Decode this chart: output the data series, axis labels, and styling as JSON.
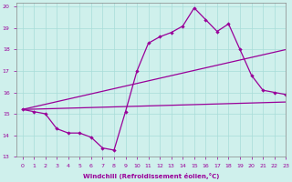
{
  "xlabel": "Windchill (Refroidissement éolien,°C)",
  "background_color": "#cff0ec",
  "line_color": "#990099",
  "xlim": [
    -0.5,
    23
  ],
  "ylim": [
    13,
    20.2
  ],
  "yticks": [
    13,
    14,
    15,
    16,
    17,
    18,
    19,
    20
  ],
  "xticks": [
    0,
    1,
    2,
    3,
    4,
    5,
    6,
    7,
    8,
    9,
    10,
    11,
    12,
    13,
    14,
    15,
    16,
    17,
    18,
    19,
    20,
    21,
    22,
    23
  ],
  "series1_x": [
    0,
    1,
    2,
    3,
    4,
    5,
    6,
    7,
    8,
    9,
    10,
    11,
    12,
    13,
    14,
    15,
    16,
    17,
    18,
    19,
    20,
    21,
    22,
    23
  ],
  "series1_y": [
    15.2,
    15.1,
    15.0,
    14.3,
    14.1,
    14.1,
    13.9,
    13.4,
    13.3,
    15.1,
    17.0,
    18.3,
    18.6,
    18.8,
    19.1,
    19.95,
    19.4,
    18.85,
    19.2,
    18.0,
    16.8,
    16.1,
    16.0,
    15.9
  ],
  "series2_x": [
    0,
    23
  ],
  "series2_y": [
    15.2,
    18.0
  ],
  "series3_x": [
    0,
    23
  ],
  "series3_y": [
    15.2,
    15.55
  ]
}
